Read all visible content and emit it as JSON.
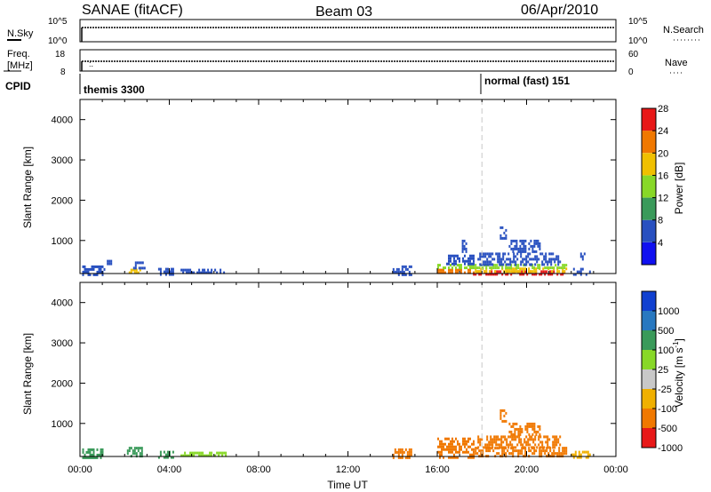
{
  "header": {
    "station": "SANAE (fitACF)",
    "beam": "Beam 03",
    "date": "06/Apr/2010"
  },
  "summary_panels": {
    "nsky": {
      "label": "N.Sky",
      "right_label": "N.Search",
      "ytick_labels": [
        "10^5",
        "10^0"
      ],
      "right_tick_labels": [
        "10^5",
        "10^0"
      ]
    },
    "freq": {
      "label_lines": [
        "Freq.",
        "[MHz]"
      ],
      "ytick_labels": [
        "18",
        "8"
      ],
      "right_label": "Nave",
      "right_tick_labels": [
        "60",
        "0"
      ]
    },
    "cpid": {
      "label": "CPID",
      "modes": [
        {
          "name": "themis 3300",
          "start_hour": 0.0
        },
        {
          "name": "normal (fast) 151",
          "start_hour": 18.0
        }
      ]
    }
  },
  "chart_data": [
    {
      "type": "heatmap",
      "name": "power",
      "ylabel": "Slant Range [km]",
      "xlabel": "",
      "colorbar_label": "Power [dB]",
      "colorbar_ticks": [
        "4",
        "8",
        "12",
        "16",
        "20",
        "24",
        "28"
      ],
      "colorbar_colors": [
        "#1010f0",
        "#2850c0",
        "#3a9a5a",
        "#88d828",
        "#f0c000",
        "#f07800",
        "#e81818"
      ],
      "x_units": "hours UT",
      "xlim": [
        0,
        24
      ],
      "ylim": [
        180,
        4500
      ],
      "yticks": [
        1000,
        2000,
        3000,
        4000
      ],
      "marker_hour": 18.0,
      "patches": [
        {
          "x0": 0.1,
          "x1": 1.1,
          "y0": 180,
          "y1": 380,
          "value": 8
        },
        {
          "x0": 1.2,
          "x1": 1.4,
          "y0": 420,
          "y1": 520,
          "value": 8
        },
        {
          "x0": 2.1,
          "x1": 2.8,
          "y0": 180,
          "y1": 300,
          "value": 20
        },
        {
          "x0": 2.3,
          "x1": 2.9,
          "y0": 300,
          "y1": 480,
          "value": 8
        },
        {
          "x0": 3.5,
          "x1": 4.2,
          "y0": 180,
          "y1": 320,
          "value": 8
        },
        {
          "x0": 4.5,
          "x1": 6.5,
          "y0": 180,
          "y1": 300,
          "value": 8
        },
        {
          "x0": 14.0,
          "x1": 14.8,
          "y0": 180,
          "y1": 380,
          "value": 8
        },
        {
          "x0": 16.0,
          "x1": 17.6,
          "y0": 180,
          "y1": 300,
          "value": 24
        },
        {
          "x0": 16.0,
          "x1": 17.6,
          "y0": 300,
          "y1": 420,
          "value": 16
        },
        {
          "x0": 16.4,
          "x1": 17.6,
          "y0": 420,
          "y1": 650,
          "value": 8
        },
        {
          "x0": 17.1,
          "x1": 17.3,
          "y0": 700,
          "y1": 1020,
          "value": 8
        },
        {
          "x0": 17.6,
          "x1": 21.8,
          "y0": 180,
          "y1": 260,
          "value": 28
        },
        {
          "x0": 17.6,
          "x1": 21.8,
          "y0": 260,
          "y1": 330,
          "value": 20
        },
        {
          "x0": 17.6,
          "x1": 21.8,
          "y0": 330,
          "y1": 420,
          "value": 16
        },
        {
          "x0": 17.8,
          "x1": 21.5,
          "y0": 420,
          "y1": 700,
          "value": 8
        },
        {
          "x0": 19.2,
          "x1": 20.6,
          "y0": 700,
          "y1": 1020,
          "value": 8
        },
        {
          "x0": 18.8,
          "x1": 19.1,
          "y0": 1050,
          "y1": 1350,
          "value": 8
        },
        {
          "x0": 22.0,
          "x1": 22.8,
          "y0": 180,
          "y1": 320,
          "value": 8
        },
        {
          "x0": 22.4,
          "x1": 22.6,
          "y0": 520,
          "y1": 700,
          "value": 8
        }
      ]
    },
    {
      "type": "heatmap",
      "name": "velocity",
      "ylabel": "Slant Range [km]",
      "xlabel": "Time UT",
      "colorbar_label": "Velocity [m s^-1]",
      "colorbar_ticks": [
        "1000",
        "500",
        "100",
        "25",
        "-25",
        "-100",
        "-500",
        "-1000"
      ],
      "colorbar_colors": [
        "#1040d0",
        "#2878c0",
        "#3a9a5a",
        "#88d828",
        "#c8c8c8",
        "#f0b000",
        "#f07800",
        "#e81818"
      ],
      "x_units": "hours UT",
      "xlim": [
        0,
        24
      ],
      "ylim": [
        180,
        4500
      ],
      "yticks": [
        1000,
        2000,
        3000,
        4000
      ],
      "xtick_labels": [
        "00:00",
        "04:00",
        "08:00",
        "12:00",
        "16:00",
        "20:00",
        "00:00"
      ],
      "marker_hour": 18.0,
      "patches": [
        {
          "x0": 0.1,
          "x1": 1.1,
          "y0": 180,
          "y1": 380,
          "value": 100
        },
        {
          "x0": 2.1,
          "x1": 2.8,
          "y0": 180,
          "y1": 420,
          "value": 100
        },
        {
          "x0": 3.5,
          "x1": 4.2,
          "y0": 180,
          "y1": 320,
          "value": 100
        },
        {
          "x0": 4.5,
          "x1": 6.5,
          "y0": 180,
          "y1": 300,
          "value": 50
        },
        {
          "x0": 14.0,
          "x1": 14.8,
          "y0": 180,
          "y1": 380,
          "value": -100
        },
        {
          "x0": 16.0,
          "x1": 17.6,
          "y0": 180,
          "y1": 650,
          "value": -100
        },
        {
          "x0": 17.6,
          "x1": 21.8,
          "y0": 180,
          "y1": 420,
          "value": -100
        },
        {
          "x0": 17.8,
          "x1": 21.5,
          "y0": 420,
          "y1": 700,
          "value": -200
        },
        {
          "x0": 19.2,
          "x1": 20.6,
          "y0": 700,
          "y1": 1020,
          "value": -200
        },
        {
          "x0": 18.8,
          "x1": 19.1,
          "y0": 1050,
          "y1": 1350,
          "value": -100
        },
        {
          "x0": 22.0,
          "x1": 22.8,
          "y0": 180,
          "y1": 320,
          "value": -25
        }
      ]
    }
  ]
}
